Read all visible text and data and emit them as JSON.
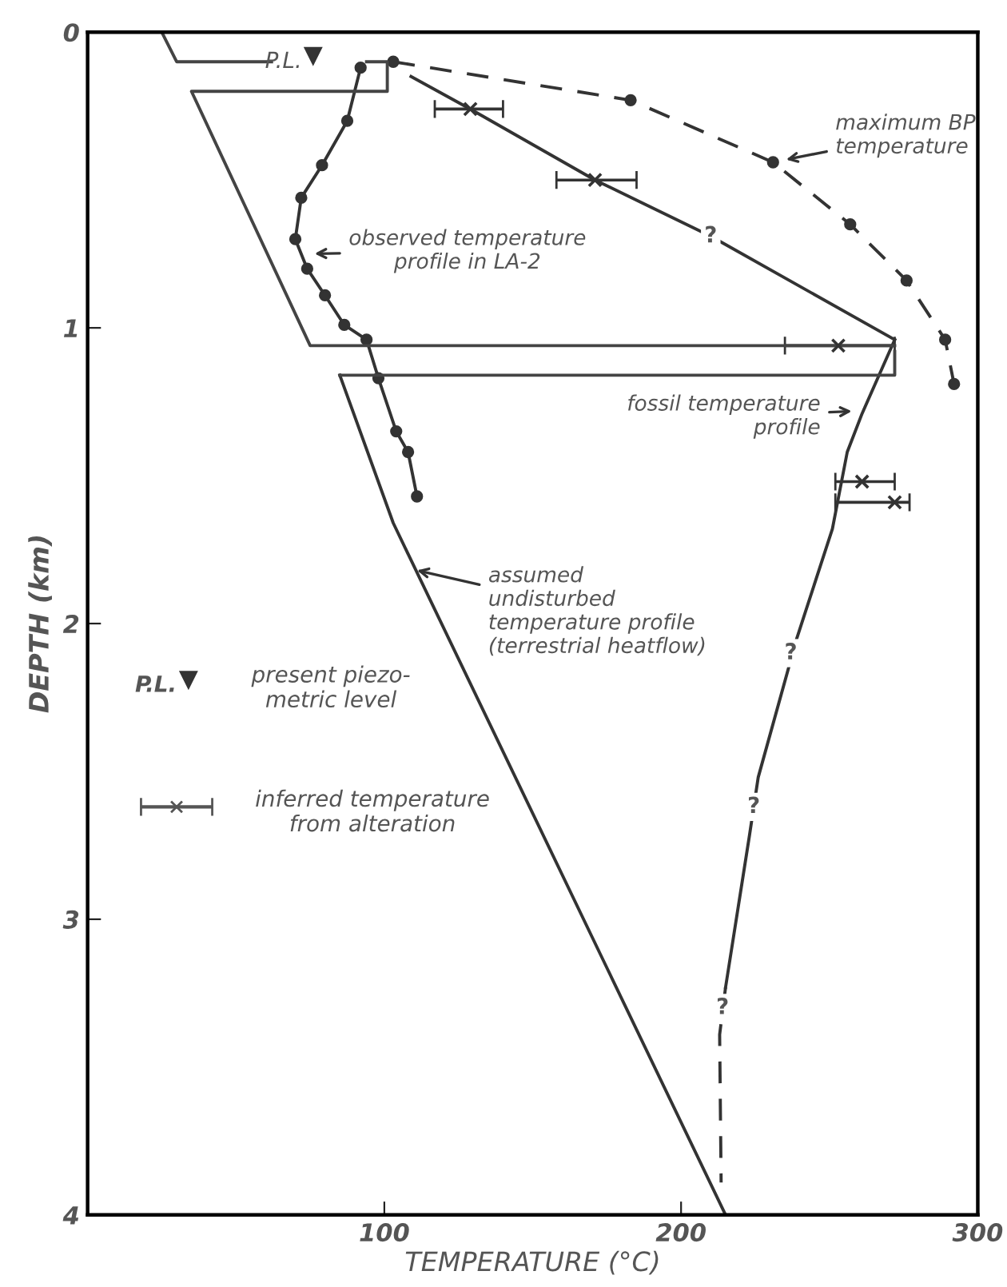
{
  "chart_data": {
    "type": "line",
    "xlabel": "TEMPERATURE (°C)",
    "ylabel": "DEPTH (km)",
    "xlim": [
      0,
      300
    ],
    "xticks": [
      100,
      200,
      300
    ],
    "ylim": [
      4,
      0
    ],
    "yticks": [
      0,
      1,
      2,
      3,
      4
    ],
    "series": [
      {
        "color": "#333333",
        "line_style": "solid",
        "marker": "circle",
        "x": [
          92,
          87.5,
          79,
          72,
          70,
          74,
          80,
          86.5,
          94,
          98,
          104,
          108,
          111
        ],
        "values": [
          0.12,
          0.3,
          0.45,
          0.56,
          0.7,
          0.8,
          0.89,
          0.99,
          1.04,
          1.17,
          1.35,
          1.42,
          1.57
        ]
      },
      {
        "color": "#333333",
        "line_style": "dashed",
        "marker": "circle",
        "x": [
          103,
          183,
          231,
          257,
          276,
          289,
          292
        ],
        "values": [
          0.1,
          0.23,
          0.44,
          0.65,
          0.84,
          1.04,
          1.19
        ]
      },
      {
        "color": "#333333",
        "line_style": "solid",
        "x": [
          109,
          129,
          171,
          210,
          272
        ],
        "values": [
          0.15,
          0.26,
          0.5,
          0.69,
          1.04
        ]
      },
      {
        "type": "scatter",
        "color": "#333333",
        "marker": "cross",
        "x": [
          129,
          171,
          253,
          261,
          272
        ],
        "values": [
          0.26,
          0.5,
          1.06,
          1.52,
          1.59
        ],
        "xerrors": [
          [
            117,
            140
          ],
          [
            158,
            185
          ],
          [
            235,
            272
          ],
          [
            252,
            272
          ],
          [
            252,
            277
          ]
        ]
      },
      {
        "color": "#333333",
        "line_style": "solid",
        "x": [
          272,
          261,
          256,
          251,
          239,
          226,
          223,
          215
        ],
        "values": [
          1.04,
          1.29,
          1.42,
          1.68,
          2.05,
          2.52,
          2.72,
          3.23
        ]
      },
      {
        "color": "#333333",
        "line_style": "dashed",
        "x": [
          215,
          213,
          213.5
        ],
        "values": [
          3.23,
          3.39,
          3.89
        ]
      },
      {
        "color": "#333333",
        "line_style": "solid",
        "x": [
          85,
          103,
          215
        ],
        "values": [
          1.16,
          1.66,
          4
        ]
      },
      {
        "color": "#444444",
        "line_style": "solid",
        "x": [
          25,
          30,
          62
        ],
        "values": [
          0,
          0.1,
          0.1
        ]
      },
      {
        "color": "#444444",
        "line_style": "solid",
        "x": [
          94,
          101,
          101,
          84,
          35,
          75,
          272
        ],
        "values": [
          0.1,
          0.1,
          0.2,
          0.2,
          0.2,
          1.06,
          1.06
        ]
      },
      {
        "color": "#444444",
        "line_style": "solid",
        "x": [
          272,
          272,
          85
        ],
        "values": [
          1.08,
          1.16,
          1.16
        ]
      }
    ],
    "annotations": [
      "P.L.",
      {
        "text": "maximum BP\ntemperature",
        "x": 231,
        "y": 0.44
      },
      {
        "text": "observed temperature\nprofile in LA-2",
        "x": 72,
        "y": 0.75
      },
      {
        "text": "?",
        "x": 210,
        "y": 0.69
      },
      {
        "text": "fossil temperature\nprofile",
        "x": 262,
        "y": 1.28
      },
      {
        "text": "assumed\nundisturbed\ntemperature profile\n(terrestrial heatflow)",
        "x": 111,
        "y": 1.82
      },
      {
        "text": "?",
        "x": 237,
        "y": 2.1
      },
      {
        "text": "?",
        "x": 224.5,
        "y": 2.62
      },
      {
        "text": "?",
        "x": 214,
        "y": 3.3
      },
      "P.L.",
      "present piezo-\nmetric level",
      "inferred temperature\nfrom alteration"
    ]
  }
}
